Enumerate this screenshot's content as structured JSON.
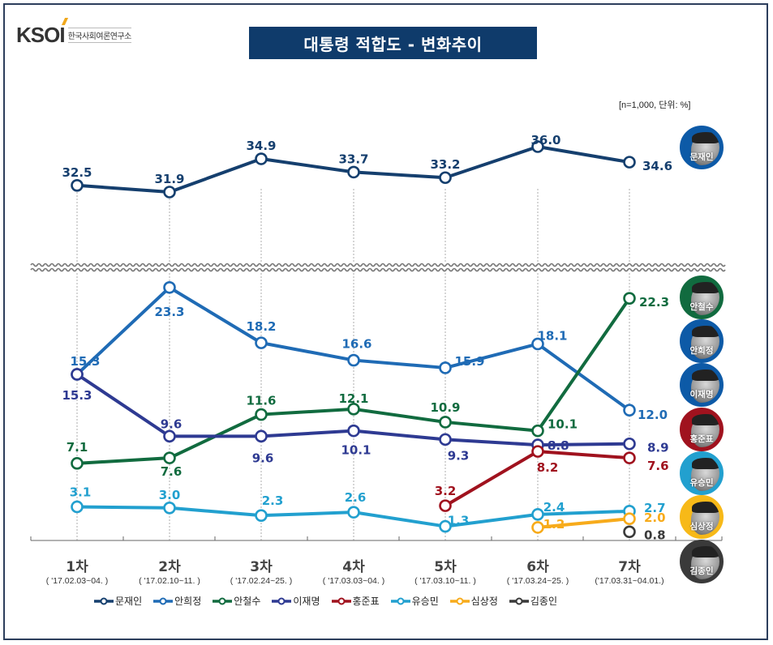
{
  "header": {
    "logo_text": "KSOI",
    "logo_subtitle": "한국사회여론연구소",
    "title": "대통령 적합도 - 변화추이",
    "note": "[n=1,000,  단위: %]"
  },
  "chart_data": {
    "type": "line",
    "title": "대통령 적합도 - 변화추이",
    "xlabel": "",
    "ylabel": "",
    "unit": "%",
    "sample_size": 1000,
    "axis_break": true,
    "grid": "vertical dashed at each round",
    "categories": [
      "1차",
      "2차",
      "3차",
      "4차",
      "5차",
      "6차",
      "7차"
    ],
    "category_dates": [
      "( '17.02.03~04. )",
      "( '17.02.10~11. )",
      "( '17.02.24~25. )",
      "( '17.03.03~04. )",
      "( '17.03.10~11. )",
      "( '17.03.24~25. )",
      "('17.03.31~04.01.)"
    ],
    "legend_position": "bottom",
    "series": [
      {
        "name": "문재인",
        "color": "#153f6e",
        "panel": "upper",
        "values": [
          32.5,
          31.9,
          34.9,
          33.7,
          33.2,
          36.0,
          34.6
        ]
      },
      {
        "name": "안희정",
        "color": "#1f6bb5",
        "panel": "lower",
        "values": [
          15.3,
          23.3,
          18.2,
          16.6,
          15.9,
          18.1,
          12.0
        ]
      },
      {
        "name": "안철수",
        "color": "#116b3f",
        "panel": "lower",
        "values": [
          7.1,
          7.6,
          11.6,
          12.1,
          10.9,
          10.1,
          22.3
        ]
      },
      {
        "name": "이재명",
        "color": "#2e3a92",
        "panel": "lower",
        "values": [
          15.3,
          9.6,
          9.6,
          10.1,
          9.3,
          8.8,
          8.9
        ]
      },
      {
        "name": "홍준표",
        "color": "#a0121e",
        "panel": "lower",
        "values": [
          null,
          null,
          null,
          null,
          3.2,
          8.2,
          7.6
        ]
      },
      {
        "name": "유승민",
        "color": "#22a0cf",
        "panel": "lower",
        "values": [
          3.1,
          3.0,
          2.3,
          2.6,
          1.3,
          2.4,
          2.7
        ]
      },
      {
        "name": "심상정",
        "color": "#f7ab1b",
        "panel": "lower",
        "values": [
          null,
          null,
          null,
          null,
          null,
          1.2,
          2.0
        ]
      },
      {
        "name": "김종인",
        "color": "#3a3a3a",
        "panel": "lower",
        "values": [
          null,
          null,
          null,
          null,
          null,
          null,
          0.8
        ]
      }
    ]
  },
  "candidates_portraits": [
    {
      "name": "문재인",
      "ring_color": "#0d5aa7"
    },
    {
      "name": "안철수",
      "ring_color": "#116b3f"
    },
    {
      "name": "안희정",
      "ring_color": "#0d5aa7"
    },
    {
      "name": "이재명",
      "ring_color": "#0d5aa7"
    },
    {
      "name": "홍준표",
      "ring_color": "#a0121e"
    },
    {
      "name": "유승민",
      "ring_color": "#22a0cf"
    },
    {
      "name": "심상정",
      "ring_color": "#f7b918"
    },
    {
      "name": "김종인",
      "ring_color": "#3a3a3a"
    }
  ]
}
